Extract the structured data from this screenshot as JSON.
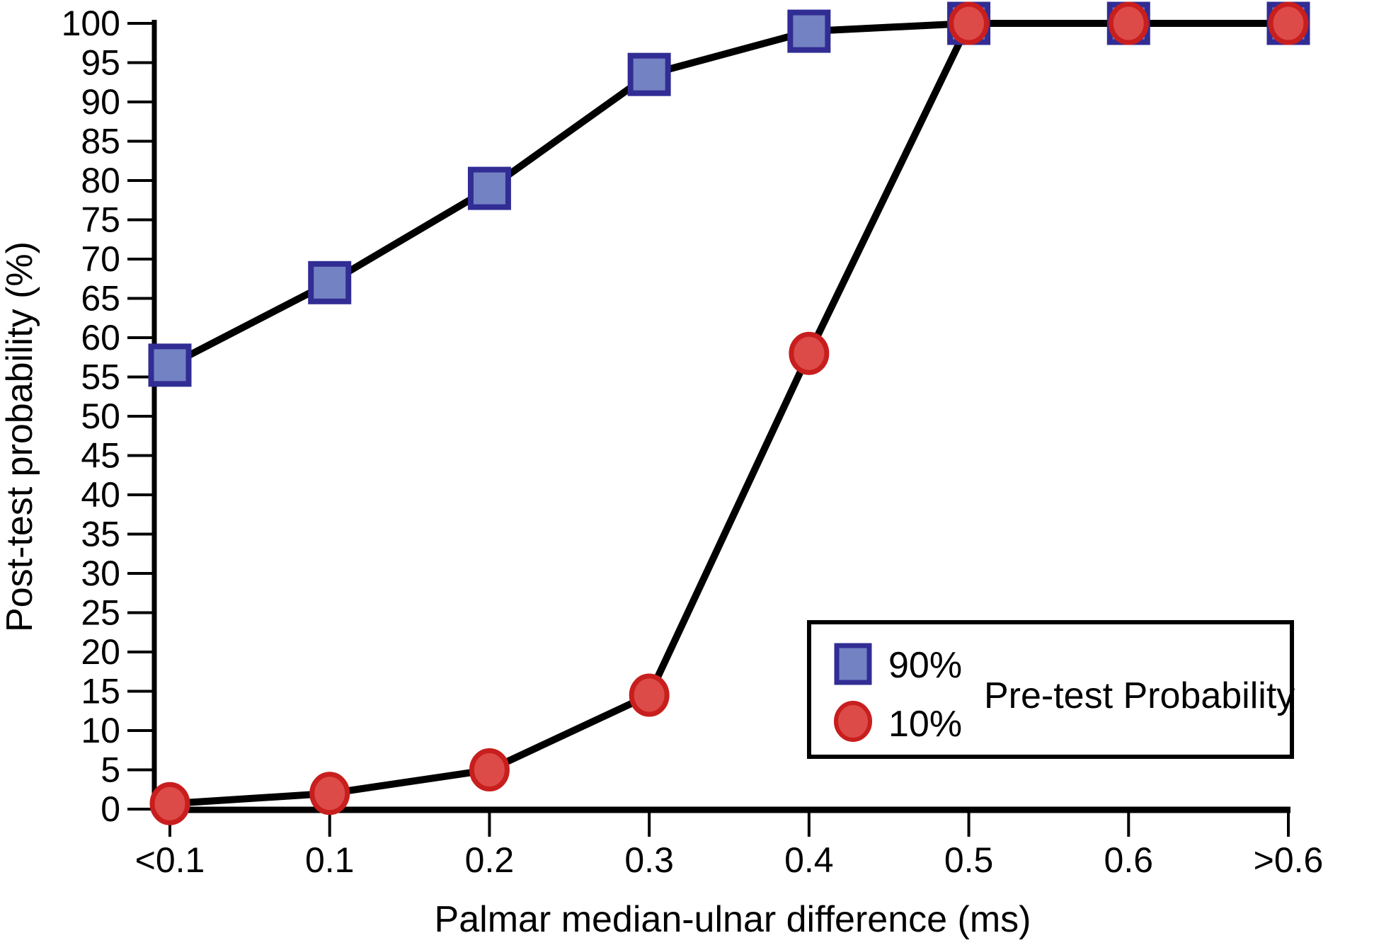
{
  "chart_data": {
    "type": "line",
    "title": "",
    "xlabel": "Palmar median-ulnar difference (ms)",
    "ylabel": "Post-test probability (%)",
    "categories": [
      "<0.1",
      "0.1",
      "0.2",
      "0.3",
      "0.4",
      "0.5",
      "0.6",
      ">0.6"
    ],
    "ylim": [
      0,
      100
    ],
    "yticks": [
      0,
      5,
      10,
      15,
      20,
      25,
      30,
      35,
      40,
      45,
      50,
      55,
      60,
      65,
      70,
      75,
      80,
      85,
      90,
      95,
      100
    ],
    "grid": false,
    "series": [
      {
        "name": "90% pre-test probability",
        "marker": "square",
        "marker_fill": "#7382c3",
        "marker_stroke": "#312d94",
        "values": [
          56.5,
          67,
          79,
          93.5,
          99,
          100,
          100,
          100
        ]
      },
      {
        "name": "10% pre-test probability",
        "marker": "circle",
        "marker_fill": "#dc4b47",
        "marker_stroke": "#c81e1e",
        "values": [
          0.7,
          2,
          5,
          14.5,
          58,
          100,
          100,
          100
        ]
      }
    ],
    "line_color": "#000000",
    "axis_color": "#000000",
    "background_color": "#ffffff",
    "legend": {
      "position": "inside-bottom-right",
      "title": "Pre-test Probability",
      "entries": [
        {
          "label": "90%",
          "marker": "square",
          "fill": "#7382c3",
          "stroke": "#312d94"
        },
        {
          "label": "10%",
          "marker": "circle",
          "fill": "#dc4b47",
          "stroke": "#c81e1e"
        }
      ]
    }
  }
}
